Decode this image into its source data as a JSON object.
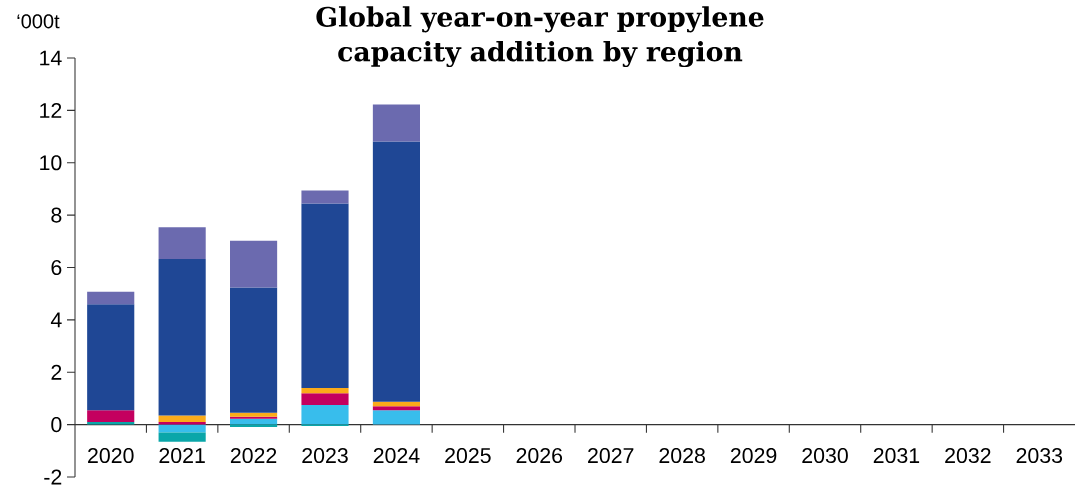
{
  "chart_data": {
    "type": "bar",
    "stacked": true,
    "title": "Global year-on-year propylene capacity addition by region",
    "ylabel": "‘000t",
    "categories": [
      "2020",
      "2021",
      "2022",
      "2023",
      "2024",
      "2025",
      "2026",
      "2027",
      "2028",
      "2029",
      "2030",
      "2031",
      "2032",
      "2033"
    ],
    "series": [
      {
        "color": "#38bdec",
        "values": [
          0,
          -0.3,
          0.22,
          0.75,
          0.55,
          null,
          null,
          null,
          null,
          null,
          null,
          null,
          null,
          null
        ]
      },
      {
        "color": "#0aa6a9",
        "values": [
          0.1,
          -0.35,
          -0.09,
          -0.05,
          0,
          null,
          null,
          null,
          null,
          null,
          null,
          null,
          null,
          null
        ]
      },
      {
        "color": "#c4005f",
        "values": [
          0.45,
          0.1,
          0.08,
          0.45,
          0.15,
          null,
          null,
          null,
          null,
          null,
          null,
          null,
          null,
          null
        ]
      },
      {
        "color": "#fbab1a",
        "values": [
          0,
          0.25,
          0.15,
          0.2,
          0.17,
          null,
          null,
          null,
          null,
          null,
          null,
          null,
          null,
          null
        ]
      },
      {
        "color": "#1f4795",
        "values": [
          4.05,
          5.97,
          4.79,
          7.04,
          9.94,
          null,
          null,
          null,
          null,
          null,
          null,
          null,
          null,
          null
        ]
      },
      {
        "color": "#6b6aaf",
        "values": [
          0.47,
          1.22,
          1.78,
          0.5,
          1.41,
          null,
          null,
          null,
          null,
          null,
          null,
          null,
          null,
          null
        ]
      }
    ],
    "ylim": [
      -2,
      14
    ],
    "yticks": [
      -2,
      0,
      2,
      4,
      6,
      8,
      10,
      12,
      14
    ]
  }
}
